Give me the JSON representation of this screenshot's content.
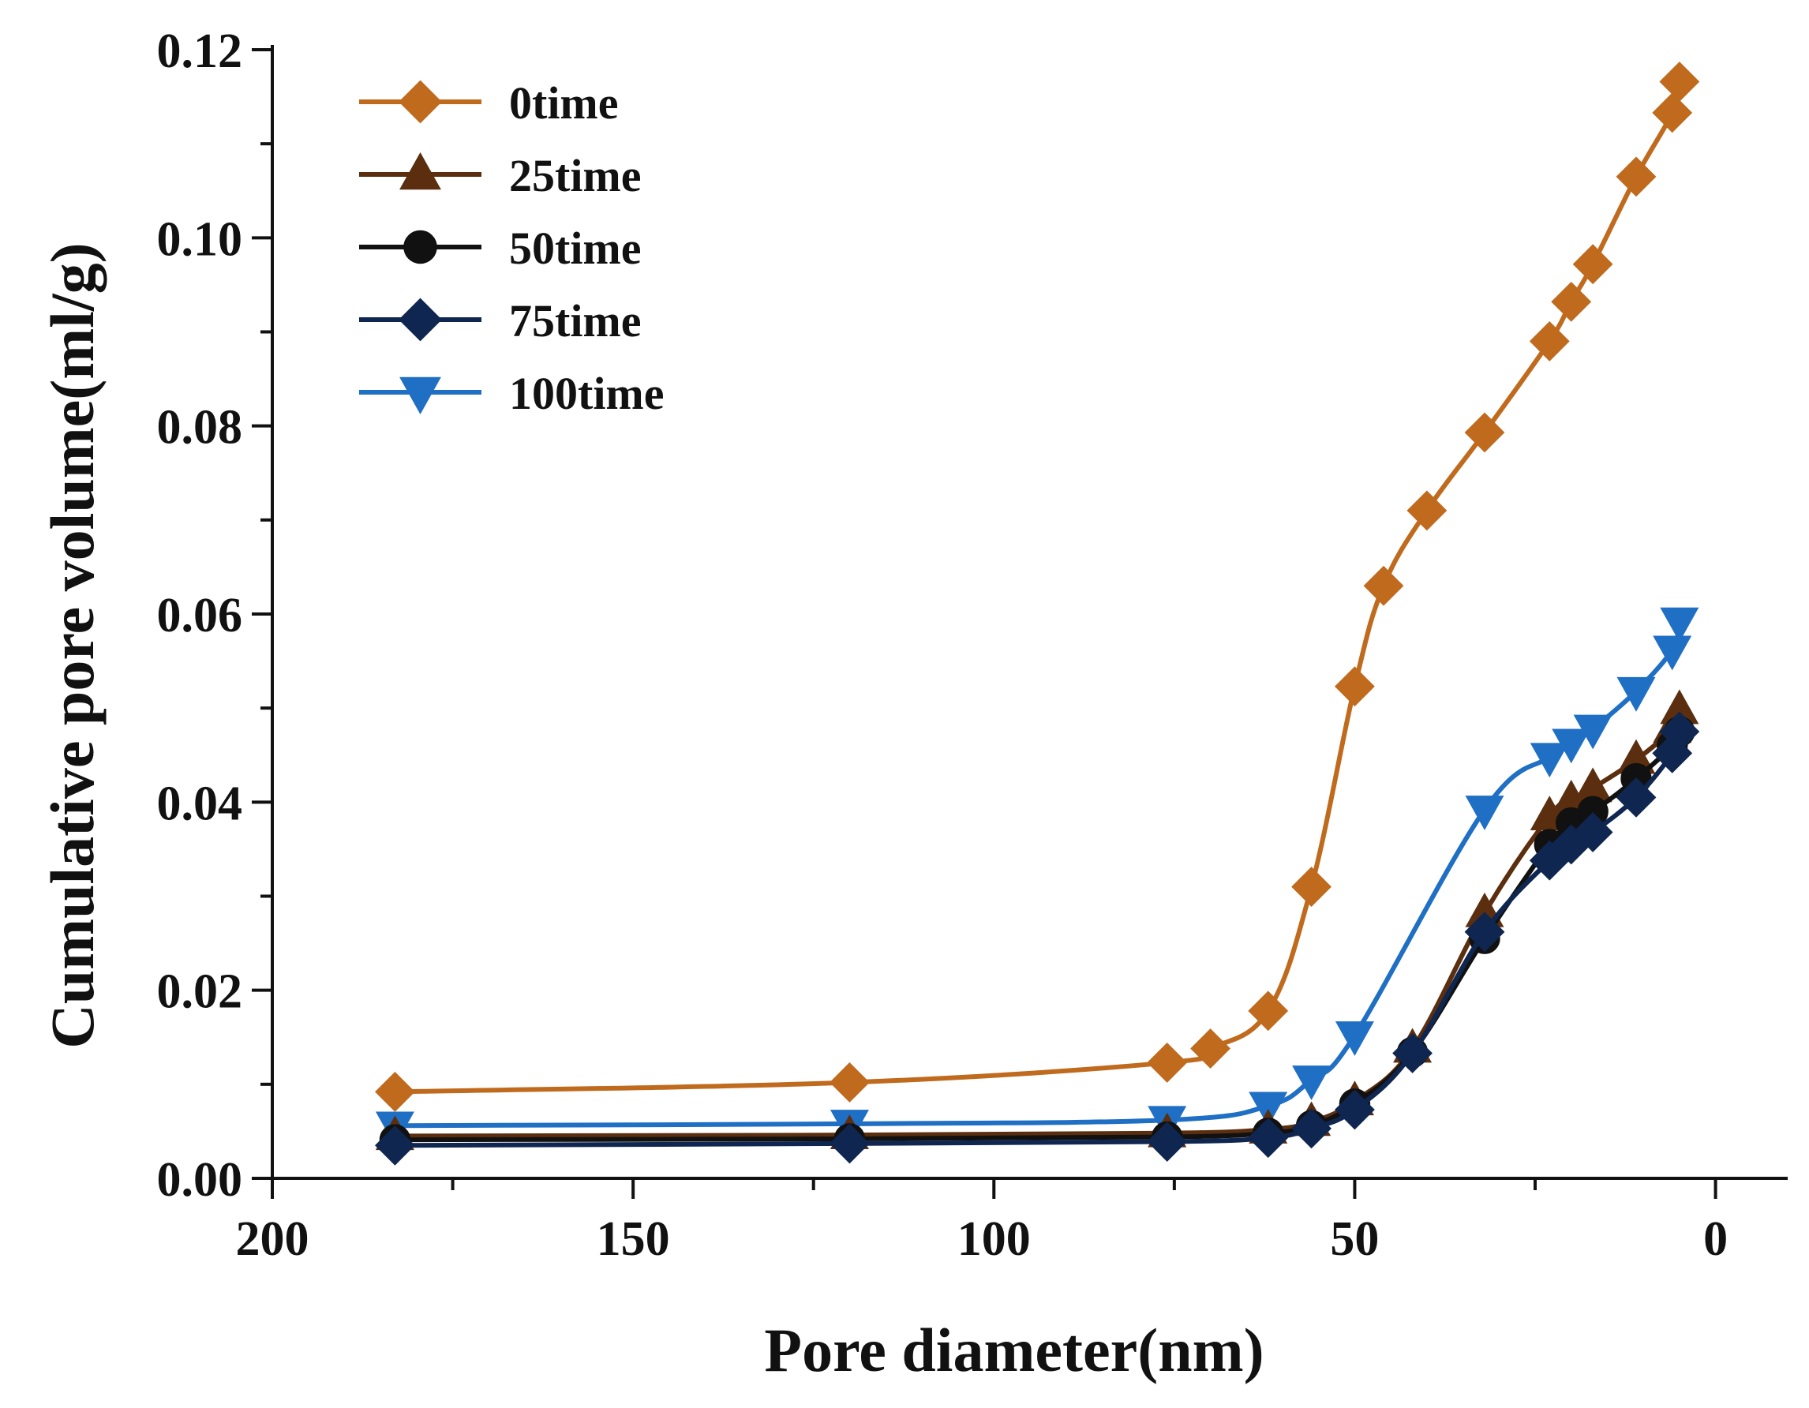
{
  "chart_data": {
    "type": "line",
    "title": "",
    "xlabel": "Pore diameter(nm)",
    "ylabel": "Cumulative pore volume(ml/g)",
    "xlim": [
      200,
      -10
    ],
    "ylim": [
      0,
      0.12
    ],
    "x_reversed": true,
    "x_ticks": [
      {
        "value": 200,
        "label": "200"
      },
      {
        "value": 150,
        "label": "150"
      },
      {
        "value": 100,
        "label": "100"
      },
      {
        "value": 50,
        "label": "50"
      },
      {
        "value": 0,
        "label": "0"
      }
    ],
    "y_ticks": [
      {
        "value": 0,
        "label": "0.00"
      },
      {
        "value": 0.02,
        "label": "0.02"
      },
      {
        "value": 0.04,
        "label": "0.04"
      },
      {
        "value": 0.06,
        "label": "0.06"
      },
      {
        "value": 0.08,
        "label": "0.08"
      },
      {
        "value": 0.1,
        "label": "0.10"
      },
      {
        "value": 0.12,
        "label": "0.12"
      }
    ],
    "legend_position": "top-left",
    "series": [
      {
        "name": "0time",
        "color": "#C06A1E",
        "marker": "diamond",
        "x": [
          183,
          120,
          76,
          70,
          62,
          56,
          50,
          46,
          40,
          32,
          23,
          20,
          17,
          11,
          6,
          5
        ],
        "y": [
          0.0092,
          0.0102,
          0.0123,
          0.0138,
          0.0178,
          0.031,
          0.0523,
          0.063,
          0.071,
          0.0793,
          0.089,
          0.0932,
          0.0972,
          0.1065,
          0.1133,
          0.1166
        ]
      },
      {
        "name": "25time",
        "color": "#5A2E0E",
        "marker": "triangle-up",
        "x": [
          183,
          120,
          76,
          62,
          56,
          50,
          42,
          32,
          23,
          20,
          17,
          11,
          6,
          5
        ],
        "y": [
          0.0045,
          0.0046,
          0.0048,
          0.0052,
          0.006,
          0.0082,
          0.0138,
          0.0282,
          0.0385,
          0.0402,
          0.0415,
          0.0445,
          0.0478,
          0.0498
        ]
      },
      {
        "name": "50time",
        "color": "#111111",
        "marker": "circle",
        "x": [
          183,
          120,
          76,
          62,
          56,
          50,
          42,
          32,
          23,
          20,
          17,
          11,
          6,
          5
        ],
        "y": [
          0.0041,
          0.0042,
          0.0044,
          0.0048,
          0.0056,
          0.0079,
          0.0134,
          0.0255,
          0.0355,
          0.0378,
          0.039,
          0.0425,
          0.046,
          0.0475
        ]
      },
      {
        "name": "75time",
        "color": "#0F2650",
        "marker": "diamond",
        "x": [
          183,
          120,
          76,
          62,
          56,
          50,
          42,
          32,
          23,
          20,
          17,
          11,
          6,
          5
        ],
        "y": [
          0.0035,
          0.0037,
          0.0039,
          0.0043,
          0.0053,
          0.0073,
          0.0133,
          0.0262,
          0.0338,
          0.0355,
          0.0368,
          0.0405,
          0.0452,
          0.0475
        ]
      },
      {
        "name": "100time",
        "color": "#1F6FC4",
        "marker": "triangle-down",
        "x": [
          183,
          120,
          76,
          62,
          56,
          50,
          32,
          23,
          20,
          17,
          11,
          6,
          5
        ],
        "y": [
          0.0056,
          0.0058,
          0.0062,
          0.0077,
          0.0105,
          0.0152,
          0.0392,
          0.0448,
          0.0463,
          0.0478,
          0.0518,
          0.0562,
          0.0592
        ]
      }
    ]
  }
}
